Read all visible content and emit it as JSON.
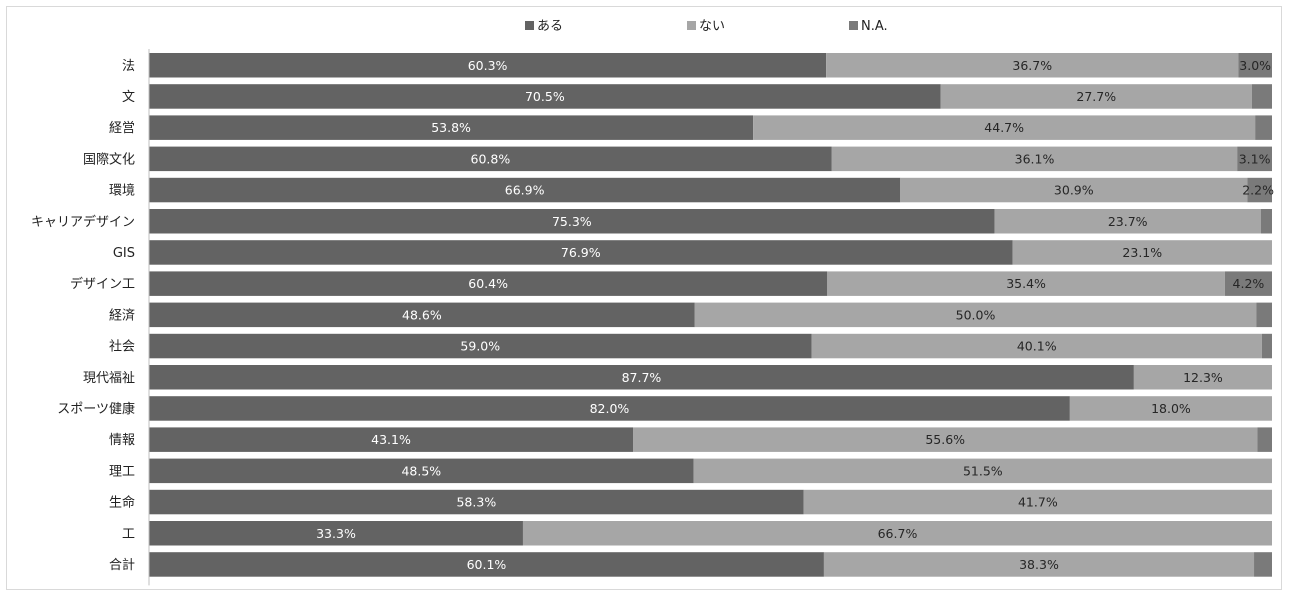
{
  "chart_data": {
    "type": "bar",
    "orientation": "horizontal",
    "stacked": "percent",
    "categories": [
      "法",
      "文",
      "経営",
      "国際文化",
      "環境",
      "キャリアデザイン",
      "GIS",
      "デザイン工",
      "経済",
      "社会",
      "現代福祉",
      "スポーツ健康",
      "情報",
      "理工",
      "生命",
      "工",
      "合計"
    ],
    "series": [
      {
        "name": "ある",
        "color": "#636363",
        "label_color": "#ffffff",
        "values": [
          60.3,
          70.5,
          53.8,
          60.8,
          66.9,
          75.3,
          76.9,
          60.4,
          48.6,
          59.0,
          87.7,
          82.0,
          43.1,
          48.5,
          58.3,
          33.3,
          60.1
        ],
        "labels": [
          "60.3%",
          "70.5%",
          "53.8%",
          "60.8%",
          "66.9%",
          "75.3%",
          "76.9%",
          "60.4%",
          "48.6%",
          "59.0%",
          "87.7%",
          "82.0%",
          "43.1%",
          "48.5%",
          "58.3%",
          "33.3%",
          "60.1%"
        ]
      },
      {
        "name": "ない",
        "color": "#a6a6a6",
        "label_color": "#262626",
        "values": [
          36.7,
          27.7,
          44.7,
          36.1,
          30.9,
          23.7,
          23.1,
          35.4,
          50.0,
          40.1,
          12.3,
          18.0,
          55.6,
          51.5,
          41.7,
          66.7,
          38.3
        ],
        "labels": [
          "36.7%",
          "27.7%",
          "44.7%",
          "36.1%",
          "30.9%",
          "23.7%",
          "23.1%",
          "35.4%",
          "50.0%",
          "40.1%",
          "12.3%",
          "18.0%",
          "55.6%",
          "51.5%",
          "41.7%",
          "66.7%",
          "38.3%"
        ]
      },
      {
        "name": "N.A.",
        "color": "#7a7a7a",
        "label_color": "#262626",
        "values": [
          3.0,
          1.8,
          1.5,
          3.1,
          2.2,
          1.0,
          0.0,
          4.2,
          1.4,
          0.9,
          0.0,
          0.0,
          1.3,
          0.0,
          0.0,
          0.0,
          1.6
        ],
        "labels": [
          "3.0%",
          "",
          "",
          "3.1%",
          "2.2%",
          "",
          "",
          "4.2%",
          "",
          "",
          "",
          "",
          "",
          "",
          "",
          "",
          ""
        ]
      }
    ],
    "xlim": [
      0,
      100
    ],
    "legend_position": "top",
    "grid": false
  }
}
